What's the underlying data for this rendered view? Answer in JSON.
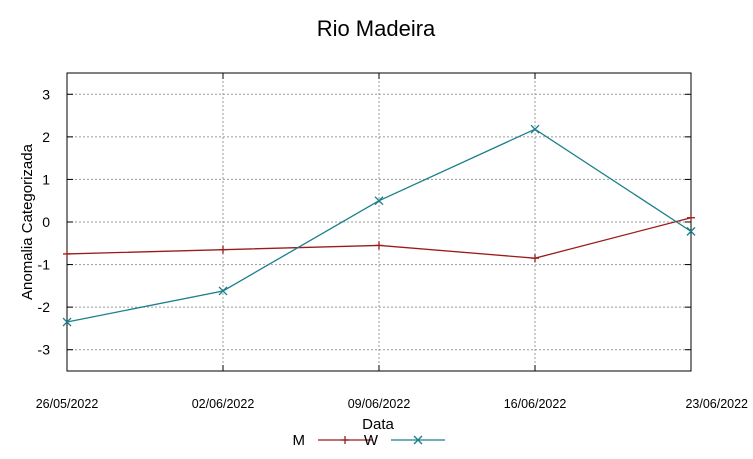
{
  "chart_data": {
    "type": "line",
    "title": "Rio Madeira",
    "xlabel": "Data",
    "ylabel": "Anomalia Categorizada",
    "x": [
      "26/05/2022",
      "02/06/2022",
      "09/06/2022",
      "16/06/2022",
      "23/06/2022"
    ],
    "ylim": [
      -3.5,
      3.5
    ],
    "yticks": [
      -3,
      -2,
      -1,
      0,
      1,
      2,
      3
    ],
    "yticks_labels": [
      "-3",
      "-2",
      "-1",
      "0",
      "1",
      "2",
      "3"
    ],
    "grid": true,
    "legend_position": "bottom-center",
    "series": [
      {
        "name": "M",
        "color": "#9b1b1b",
        "marker": "plus",
        "values": [
          -0.75,
          -0.65,
          -0.55,
          -0.85,
          0.1
        ]
      },
      {
        "name": "W",
        "color": "#1a7f8c",
        "marker": "x",
        "values": [
          -2.35,
          -1.62,
          0.5,
          2.18,
          -0.22
        ]
      }
    ]
  }
}
